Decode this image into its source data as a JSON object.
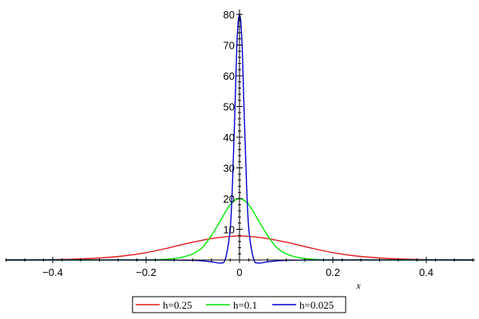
{
  "chart_data": {
    "type": "line",
    "title": "",
    "xlabel": "x",
    "ylabel": "",
    "xlim": [
      -0.5,
      0.5
    ],
    "ylim": [
      0,
      80
    ],
    "x_ticks": [
      -0.4,
      -0.2,
      0,
      0.2,
      0.4
    ],
    "x_tick_labels": [
      "−0.4",
      "−0.2",
      "0",
      "0.2",
      "0.4"
    ],
    "y_ticks": [
      10,
      20,
      30,
      40,
      50,
      60,
      70,
      80
    ],
    "y_tick_labels": [
      "10",
      "20",
      "30",
      "40",
      "50",
      "60",
      "70",
      "80"
    ],
    "grid": false,
    "legend_position": "bottom",
    "series": [
      {
        "name": "h=0.25",
        "color": "#e31a1c",
        "x": [
          -0.5,
          -0.45,
          -0.4,
          -0.35,
          -0.3,
          -0.25,
          -0.2,
          -0.15,
          -0.1,
          -0.05,
          0,
          0.05,
          0.1,
          0.15,
          0.2,
          0.25,
          0.3,
          0.35,
          0.4,
          0.45,
          0.5
        ],
        "y": [
          0.0,
          0.05,
          0.12,
          0.3,
          0.65,
          1.3,
          2.4,
          4.0,
          5.8,
          7.2,
          7.8,
          7.2,
          5.8,
          4.0,
          2.4,
          1.3,
          0.65,
          0.3,
          0.12,
          0.05,
          0.0
        ]
      },
      {
        "name": "h=0.1",
        "color": "#00e600",
        "x": [
          -0.5,
          -0.3,
          -0.2,
          -0.15,
          -0.12,
          -0.1,
          -0.08,
          -0.06,
          -0.04,
          -0.02,
          0,
          0.02,
          0.04,
          0.06,
          0.08,
          0.1,
          0.12,
          0.15,
          0.2,
          0.3,
          0.5
        ],
        "y": [
          0.0,
          0.0,
          0.05,
          0.3,
          1.0,
          2.0,
          4.0,
          8.0,
          13.0,
          18.0,
          20.0,
          18.0,
          13.0,
          8.0,
          4.0,
          2.0,
          1.0,
          0.3,
          0.05,
          0.0,
          0.0
        ]
      },
      {
        "name": "h=0.025",
        "color": "#0000cc",
        "x": [
          -0.5,
          -0.2,
          -0.1,
          -0.06,
          -0.04,
          -0.03,
          -0.02,
          -0.015,
          -0.01,
          -0.005,
          0,
          0.005,
          0.01,
          0.015,
          0.02,
          0.03,
          0.04,
          0.06,
          0.1,
          0.2,
          0.5
        ],
        "y": [
          0.0,
          0.0,
          -0.1,
          -0.6,
          -1.0,
          0.5,
          10.0,
          25.0,
          48.0,
          72.0,
          80.0,
          72.0,
          48.0,
          25.0,
          10.0,
          0.5,
          -1.0,
          -0.6,
          -0.1,
          0.0,
          0.0
        ]
      }
    ]
  }
}
